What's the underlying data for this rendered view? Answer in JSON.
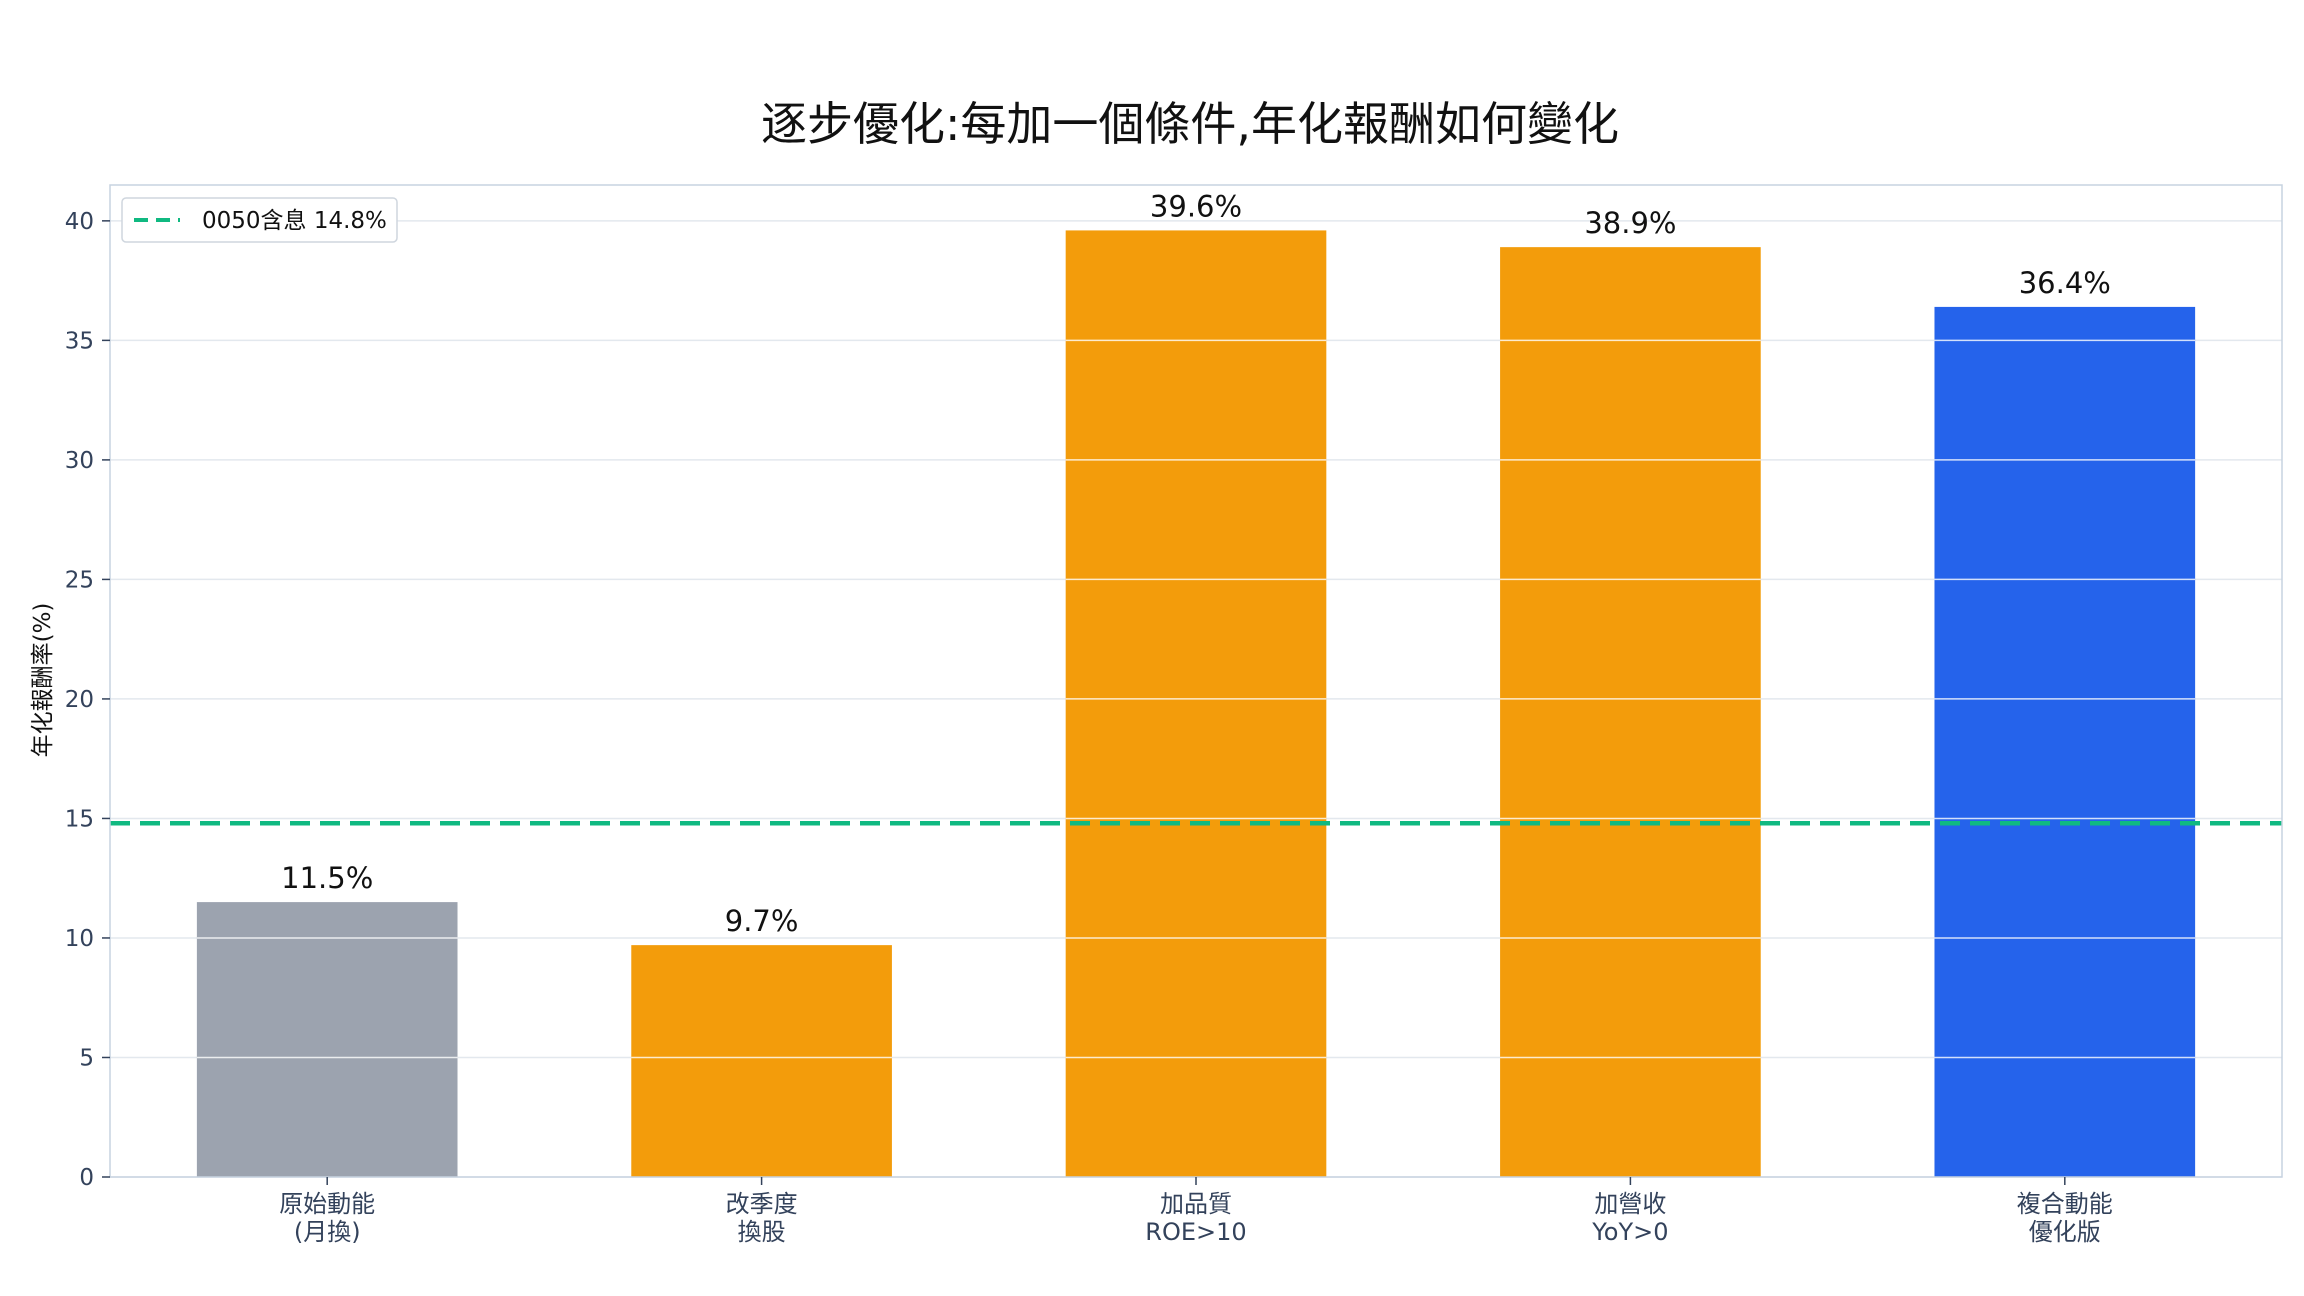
{
  "chart_data": {
    "type": "bar",
    "title": "逐步優化:每加一個條件,年化報酬如何變化",
    "ylabel": "年化報酬率(%)",
    "xlabel": "",
    "ylim": [
      0,
      41.5
    ],
    "yticks": [
      "0",
      "5",
      "10",
      "15",
      "20",
      "25",
      "30",
      "35",
      "40"
    ],
    "grid": "y",
    "categories": [
      {
        "line1": "原始動能",
        "line2": "(月換)"
      },
      {
        "line1": "改季度",
        "line2": "換股"
      },
      {
        "line1": "加品質",
        "line2": "ROE>10"
      },
      {
        "line1": "加營收",
        "line2": "YoY>0"
      },
      {
        "line1": "複合動能",
        "line2": "優化版"
      }
    ],
    "values": [
      11.5,
      9.7,
      39.6,
      38.9,
      36.4
    ],
    "data_labels": [
      "11.5%",
      "9.7%",
      "39.6%",
      "38.9%",
      "36.4%"
    ],
    "bar_colors": [
      "#9ca3af",
      "#f39c0b",
      "#f39c0b",
      "#f39c0b",
      "#2563eb"
    ],
    "reference_line": {
      "value": 14.8,
      "label": "0050含息 14.8%",
      "color": "#10b981",
      "style": "dashed"
    },
    "legend_position": "top-left"
  }
}
